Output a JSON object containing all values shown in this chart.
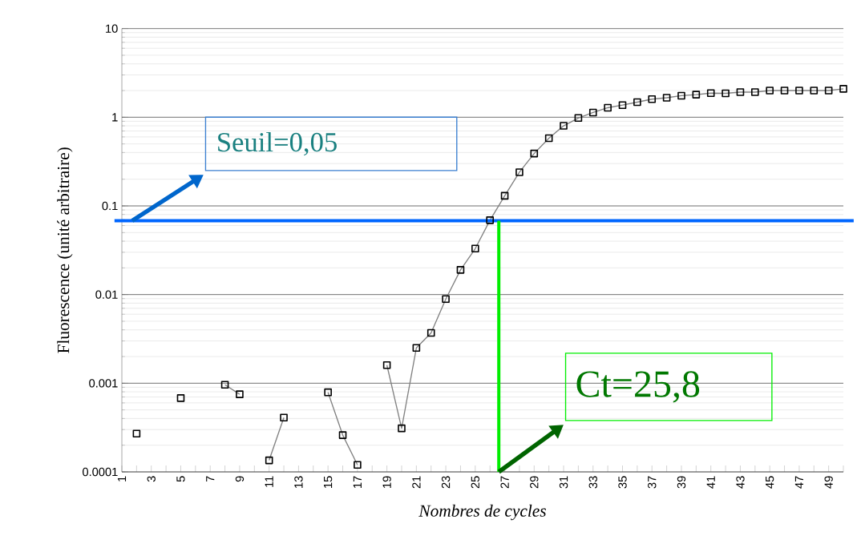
{
  "chart_data": {
    "type": "line",
    "xlabel": "Nombres de cycles",
    "ylabel": "Fluorescence (unité arbitraire)",
    "x": [
      2,
      3,
      4,
      5,
      6,
      7,
      8,
      9,
      10,
      11,
      12,
      13,
      14,
      15,
      16,
      17,
      18,
      19,
      20,
      21,
      22,
      23,
      24,
      25,
      26,
      27,
      28,
      29,
      30,
      31,
      32,
      33,
      34,
      35,
      36,
      37,
      38,
      39,
      40,
      41,
      42,
      43,
      44,
      45,
      46,
      47,
      48,
      49,
      50
    ],
    "series": [
      {
        "color": "#000000",
        "values": [
          0.00027,
          null,
          null,
          0.00068,
          null,
          null,
          0.00096,
          0.00075,
          null,
          0.000135,
          0.00041,
          null,
          null,
          0.00079,
          0.00026,
          0.00012,
          null,
          0.0016,
          0.00031,
          0.0025,
          0.0037,
          0.0089,
          0.019,
          0.033,
          0.069,
          0.13,
          0.24,
          0.39,
          0.58,
          0.8,
          0.98,
          1.13,
          1.28,
          1.37,
          1.48,
          1.6,
          1.66,
          1.75,
          1.8,
          1.87,
          1.86,
          1.92,
          1.92,
          2.0,
          2.0,
          2.0,
          2.0,
          2.0,
          2.09
        ]
      }
    ],
    "marker": "square",
    "line_style": "solid",
    "log": "y",
    "grid": "y",
    "xlim": [
      1,
      50
    ],
    "ylim": [
      0.0001,
      10
    ],
    "yticks": [
      0.0001,
      0.001,
      0.01,
      0.1,
      1,
      10
    ],
    "xticks": [
      1,
      {
        "value": 2,
        "label": null
      },
      3,
      {
        "value": 4,
        "label": null
      },
      5,
      {
        "value": 6,
        "label": null
      },
      7,
      {
        "value": 8,
        "label": null
      },
      9,
      {
        "value": 10,
        "label": null
      },
      11,
      {
        "value": 12,
        "label": null
      },
      13,
      {
        "value": 14,
        "label": null
      },
      15,
      {
        "value": 16,
        "label": null
      },
      17,
      {
        "value": 18,
        "label": null
      },
      19,
      {
        "value": 20,
        "label": null
      },
      21,
      {
        "value": 22,
        "label": null
      },
      23,
      {
        "value": 24,
        "label": null
      },
      25,
      {
        "value": 26,
        "label": null
      },
      27,
      {
        "value": 28,
        "label": null
      },
      29,
      {
        "value": 30,
        "label": null
      },
      31,
      {
        "value": 32,
        "label": null
      },
      33,
      {
        "value": 34,
        "label": null
      },
      35,
      {
        "value": 36,
        "label": null
      },
      37,
      {
        "value": 38,
        "label": null
      },
      39,
      {
        "value": 40,
        "label": null
      },
      41,
      {
        "value": 42,
        "label": null
      },
      43,
      {
        "value": 44,
        "label": null
      },
      45,
      {
        "value": 46,
        "label": null
      },
      47,
      {
        "value": 48,
        "label": null
      },
      49,
      {
        "value": 50,
        "label": null
      }
    ],
    "ref_lines": [
      {
        "axis": "y",
        "value": 0.068,
        "color": "#0066ff"
      },
      {
        "axis": "x",
        "value": 26.6,
        "color": "#00ee00"
      }
    ],
    "annotations": [
      {
        "text": "Seuil=0,05",
        "x": 1.7,
        "y": 0.068
      },
      {
        "text": "Ct=25,8",
        "x": 26.6,
        "y": 0.0001
      }
    ]
  }
}
